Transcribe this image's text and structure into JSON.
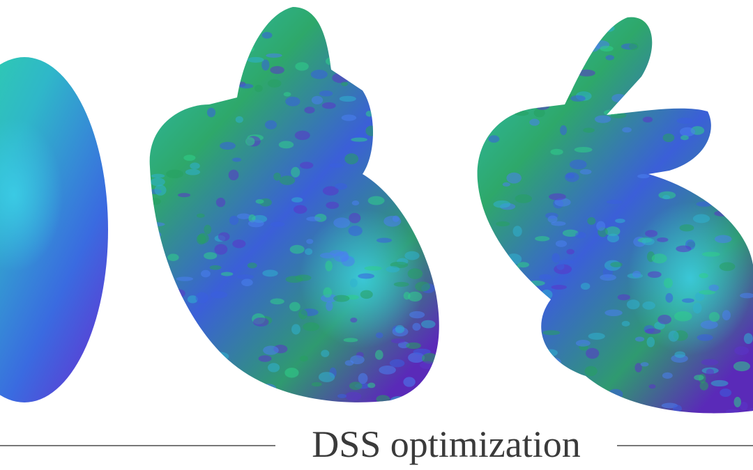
{
  "caption": "DSS optimization"
}
